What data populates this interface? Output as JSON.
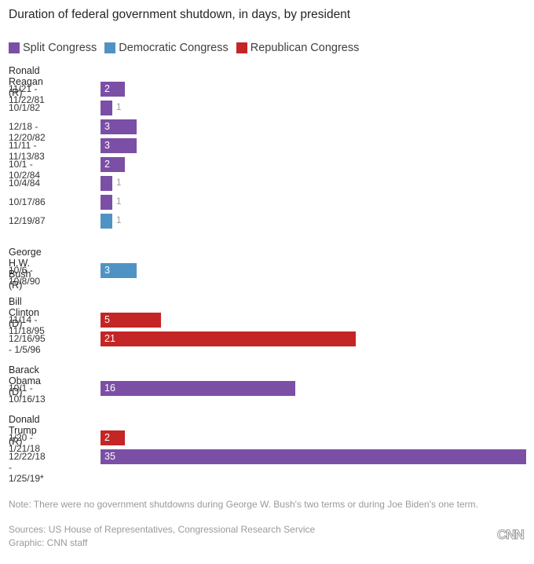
{
  "chart_data": {
    "type": "bar",
    "orientation": "horizontal",
    "title": "Duration of federal government shutdown, in days, by president",
    "xlabel": "",
    "ylabel": "",
    "xlim": [
      0,
      35
    ],
    "grid": false,
    "legend": {
      "placement": "top-left",
      "entries": [
        {
          "key": "split",
          "label": "Split Congress",
          "color": "#7b4fa6"
        },
        {
          "key": "dem",
          "label": "Democratic Congress",
          "color": "#4f93c4"
        },
        {
          "key": "rep",
          "label": "Republican Congress",
          "color": "#c42525"
        }
      ]
    },
    "groups": [
      {
        "president": "Ronald Reagan (R)",
        "rows": [
          {
            "dates": "11/21 - 11/22/81",
            "days": 2,
            "congress": "split"
          },
          {
            "dates": "10/1/82",
            "days": 1,
            "congress": "split"
          },
          {
            "dates": "12/18 - 12/20/82",
            "days": 3,
            "congress": "split"
          },
          {
            "dates": "11/11 - 11/13/83",
            "days": 3,
            "congress": "split"
          },
          {
            "dates": "10/1 - 10/2/84",
            "days": 2,
            "congress": "split"
          },
          {
            "dates": "10/4/84",
            "days": 1,
            "congress": "split"
          },
          {
            "dates": "10/17/86",
            "days": 1,
            "congress": "split"
          },
          {
            "dates": "12/19/87",
            "days": 1,
            "congress": "dem"
          }
        ]
      },
      {
        "president": "George H.W. Bush (R)",
        "rows": [
          {
            "dates": "10/6 - 10/8/90",
            "days": 3,
            "congress": "dem"
          }
        ]
      },
      {
        "president": "Bill Clinton (D)",
        "rows": [
          {
            "dates": "11/14 - 11/18/95",
            "days": 5,
            "congress": "rep"
          },
          {
            "dates": "12/16/95 - 1/5/96",
            "days": 21,
            "congress": "rep"
          }
        ]
      },
      {
        "president": "Barack Obama (D)",
        "rows": [
          {
            "dates": "10/1 - 10/16/13",
            "days": 16,
            "congress": "split"
          }
        ]
      },
      {
        "president": "Donald Trump (R)",
        "rows": [
          {
            "dates": "1/20 - 1/21/18",
            "days": 2,
            "congress": "rep"
          },
          {
            "dates": "12/22/18 - 1/25/19*",
            "days": 35,
            "congress": "split"
          }
        ]
      }
    ]
  },
  "footer": {
    "note": "Note: There were no government shutdowns during George W. Bush's two terms or during Joe Biden's one term.",
    "sources": "Sources: US House of Representatives, Congressional Research Service",
    "credit": "Graphic: CNN staff",
    "logo": "CNN"
  }
}
